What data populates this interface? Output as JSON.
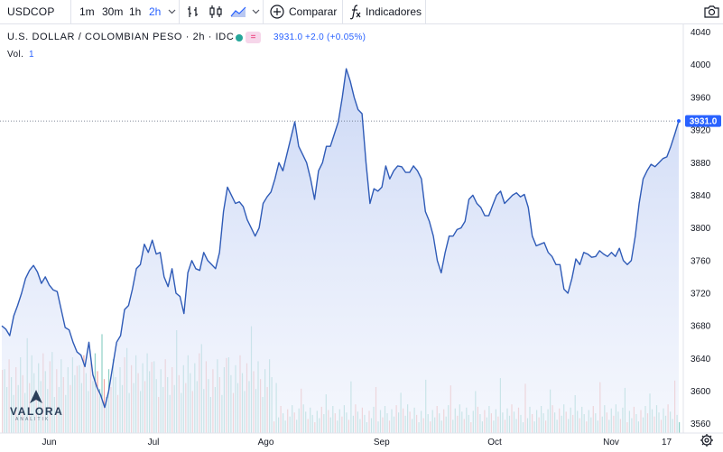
{
  "toolbar": {
    "symbol": "USDCOP",
    "timeframes": [
      "1m",
      "30m",
      "1h",
      "2h"
    ],
    "active_timeframe": "2h",
    "compare_label": "Comparar",
    "indicators_label": "Indicadores",
    "icons": [
      "chevron-down-icon",
      "bars-icon",
      "candles-icon",
      "area-icon",
      "add-circle-icon",
      "function-icon",
      "camera-icon"
    ]
  },
  "legend": {
    "title": "U.S. DOLLAR / COLOMBIAN PESO · 2h · IDC",
    "last": "3931.0",
    "change": "+2.0 (+0.05%)",
    "volume_label": "Vol.",
    "volume_value": "1",
    "status_color": "#26a69a"
  },
  "watermark": {
    "name": "VALORA",
    "subtitle": "ANALITIK"
  },
  "colors": {
    "line": "#2962ff",
    "line_stroke": "#2f5bb7",
    "area_top": "#c9d6f5",
    "vol_up": "#8fd0c6",
    "vol_down": "#f2a7a3"
  },
  "chart_data": {
    "type": "area",
    "title": "U.S. DOLLAR / COLOMBIAN PESO",
    "xlabel": "",
    "ylabel": "",
    "x_ticks": [
      "Jun",
      "Jul",
      "Ago",
      "Sep",
      "Oct",
      "Nov",
      "17"
    ],
    "y_ticks": [
      3560,
      3600,
      3640,
      3680,
      3720,
      3760,
      3800,
      3840,
      3880,
      3920,
      3960,
      4000,
      4040
    ],
    "ylim": [
      3542,
      4045
    ],
    "grid": false,
    "last_price_label": "3931.0",
    "last_price": 3931,
    "series": [
      {
        "x": [
          0,
          1,
          2,
          3,
          4,
          5,
          6,
          7,
          8,
          9,
          10,
          11,
          12,
          13,
          14,
          15,
          16,
          17,
          18,
          19,
          20,
          21,
          22,
          23,
          24,
          25,
          26,
          27,
          28,
          29,
          30,
          31,
          32,
          33,
          34,
          35,
          36,
          37,
          38,
          39,
          40,
          41,
          42,
          43,
          44,
          45,
          46,
          47,
          48,
          49,
          50,
          51,
          52,
          53,
          54,
          55,
          56,
          57,
          58,
          59,
          60,
          61,
          62,
          63,
          64,
          65,
          66,
          67,
          68,
          69,
          70,
          71,
          72,
          73,
          74,
          75,
          76,
          77,
          78,
          79,
          80,
          81,
          82,
          83,
          84,
          85,
          86,
          87,
          88,
          89,
          90,
          91,
          92,
          93,
          94,
          95,
          96,
          97,
          98,
          99,
          100,
          101,
          102,
          103,
          104,
          105,
          106,
          107,
          108,
          109,
          110,
          111,
          112,
          113,
          114,
          115,
          116,
          117,
          118,
          119,
          120,
          121,
          122,
          123,
          124,
          125,
          126,
          127,
          128,
          129,
          130,
          131,
          132,
          133,
          134,
          135,
          136,
          137,
          138,
          139,
          140,
          141,
          142,
          143,
          144,
          145,
          146,
          147,
          148,
          149,
          150,
          151,
          152,
          153,
          154,
          155,
          156,
          157,
          158,
          159,
          160,
          161,
          162,
          163,
          164,
          165,
          166,
          167,
          168,
          169,
          170,
          171
        ],
        "values": [
          3680,
          3676,
          3668,
          3692,
          3705,
          3720,
          3738,
          3748,
          3754,
          3746,
          3732,
          3740,
          3730,
          3724,
          3722,
          3700,
          3678,
          3675,
          3660,
          3648,
          3644,
          3630,
          3660,
          3620,
          3605,
          3595,
          3580,
          3600,
          3630,
          3660,
          3668,
          3700,
          3705,
          3725,
          3750,
          3755,
          3780,
          3770,
          3785,
          3768,
          3770,
          3740,
          3728,
          3750,
          3720,
          3716,
          3695,
          3745,
          3760,
          3750,
          3748,
          3770,
          3760,
          3755,
          3750,
          3770,
          3820,
          3850,
          3840,
          3830,
          3832,
          3826,
          3810,
          3800,
          3790,
          3800,
          3830,
          3838,
          3844,
          3860,
          3880,
          3870,
          3890,
          3910,
          3930,
          3900,
          3890,
          3880,
          3860,
          3835,
          3870,
          3880,
          3900,
          3900,
          3915,
          3930,
          3960,
          3995,
          3980,
          3960,
          3945,
          3940,
          3880,
          3830,
          3848,
          3845,
          3850,
          3876,
          3860,
          3870,
          3876,
          3875,
          3868,
          3868,
          3876,
          3870,
          3860,
          3820,
          3808,
          3790,
          3760,
          3745,
          3770,
          3790,
          3790,
          3798,
          3800,
          3808,
          3835,
          3840,
          3830,
          3825,
          3815,
          3815,
          3828,
          3840,
          3845,
          3830,
          3835,
          3840,
          3843,
          3838,
          3841,
          3825,
          3790,
          3778,
          3780,
          3782,
          3770,
          3765,
          3755,
          3755,
          3725,
          3720,
          3738,
          3762,
          3755,
          3770,
          3768,
          3764,
          3765,
          3772,
          3768,
          3765,
          3770,
          3765,
          3775,
          3760,
          3755,
          3760,
          3790,
          3830,
          3860,
          3870,
          3878,
          3875,
          3880,
          3885,
          3887,
          3900,
          3915,
          3931
        ]
      }
    ],
    "volume": [
      {
        "up": [
          3,
          2,
          3,
          1,
          4,
          3,
          2,
          2,
          1,
          3,
          1,
          4,
          2,
          3,
          1,
          3,
          1,
          2,
          4,
          1,
          2,
          3,
          1,
          2,
          2,
          1,
          3,
          2,
          4,
          2,
          3,
          1,
          3,
          2,
          2,
          1,
          4,
          2,
          3,
          2,
          1,
          3,
          1,
          1,
          1,
          1,
          1,
          1,
          1,
          1,
          1,
          1,
          1,
          1,
          1,
          1,
          1,
          1,
          1,
          1,
          1,
          1,
          1,
          1,
          1,
          1,
          1,
          1,
          1,
          1,
          1,
          1,
          1,
          1,
          1,
          1,
          1,
          1,
          1,
          1,
          1,
          1,
          1,
          1,
          1,
          1,
          1,
          1,
          1,
          1,
          1,
          1,
          1,
          1,
          1,
          1,
          1,
          1,
          1,
          1,
          1,
          1,
          1,
          1,
          1,
          1,
          1,
          1,
          1,
          1,
          1,
          1,
          1,
          1,
          1,
          1,
          1,
          1,
          1,
          1,
          1,
          1,
          1,
          1,
          1,
          1,
          1,
          1,
          1,
          1,
          1,
          1,
          1,
          1,
          1,
          1,
          1,
          1,
          1,
          1,
          1,
          1,
          1,
          1,
          1,
          1,
          1,
          1,
          1,
          1,
          1,
          1,
          1,
          1,
          1,
          1,
          1,
          1,
          1,
          1,
          1,
          1,
          1,
          1,
          1,
          1,
          1,
          1,
          1,
          1,
          1,
          1
        ]
      }
    ]
  }
}
